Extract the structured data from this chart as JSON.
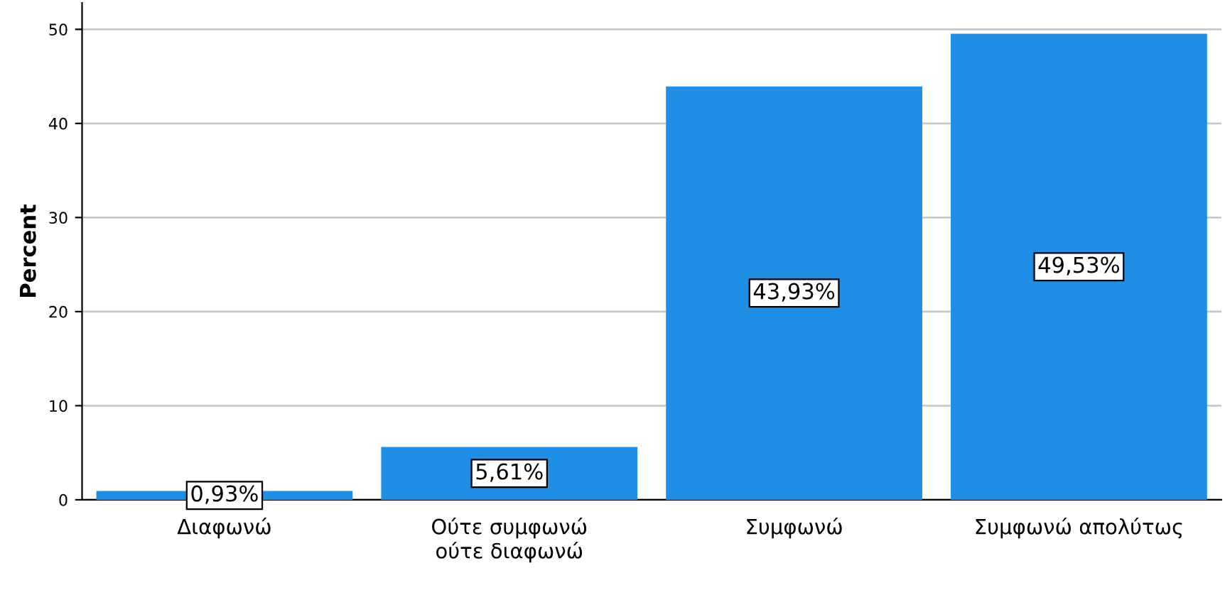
{
  "chart_data": {
    "type": "bar",
    "ylabel": "Percent",
    "categories": [
      "Διαφωνώ",
      "Ούτε συμφωνώ ούτε διαφωνώ",
      "Συμφωνώ",
      "Συμφωνώ απολύτως"
    ],
    "values": [
      0.93,
      5.61,
      43.93,
      49.53
    ],
    "value_labels": [
      "0,93%",
      "5,61%",
      "43,93%",
      "49,53%"
    ],
    "color": "#1f8fe6",
    "ylim": [
      0,
      52.8
    ],
    "yticks": [
      0,
      10,
      20,
      30,
      40,
      50
    ],
    "grid": "y"
  }
}
